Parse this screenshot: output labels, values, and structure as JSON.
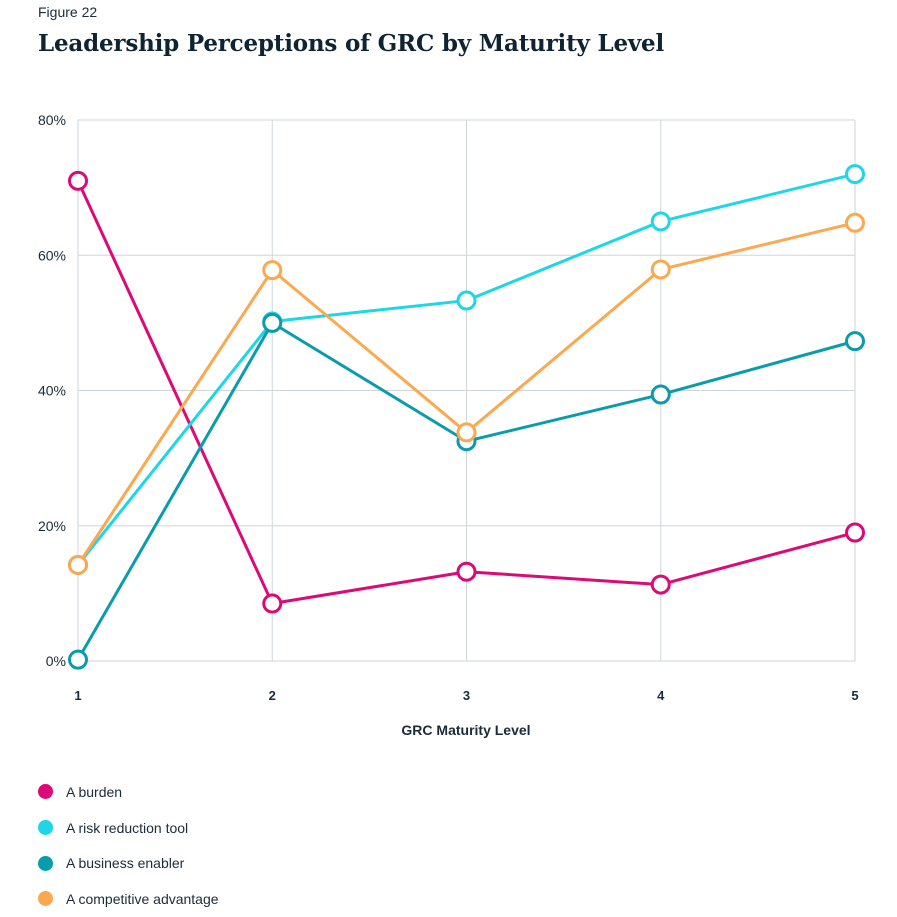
{
  "figure_label": "Figure 22",
  "title": "Leadership Perceptions of GRC by Maturity Level",
  "chart_data": {
    "type": "line",
    "title": "Leadership Perceptions of GRC by Maturity Level",
    "xlabel": "GRC Maturity Level",
    "ylabel": "",
    "categories": [
      "1",
      "2",
      "3",
      "4",
      "5"
    ],
    "ylim": [
      0,
      80
    ],
    "yticks": [
      "0%",
      "20%",
      "40%",
      "60%",
      "80%"
    ],
    "grid": true,
    "legend_position": "bottom-left",
    "series": [
      {
        "name": "A burden",
        "color": "#dc0a78",
        "values": [
          71,
          8.5,
          13.2,
          11.3,
          19
        ]
      },
      {
        "name": "A risk reduction tool",
        "color": "#1ed6e6",
        "values": [
          14.2,
          50.2,
          53.3,
          65,
          72
        ]
      },
      {
        "name": "A business enabler",
        "color": "#0a9bad",
        "values": [
          0.2,
          50,
          32.5,
          39.4,
          47.3
        ]
      },
      {
        "name": "A competitive advantage",
        "color": "#fca84e",
        "values": [
          14.2,
          57.8,
          33.8,
          57.9,
          64.8
        ]
      }
    ]
  }
}
